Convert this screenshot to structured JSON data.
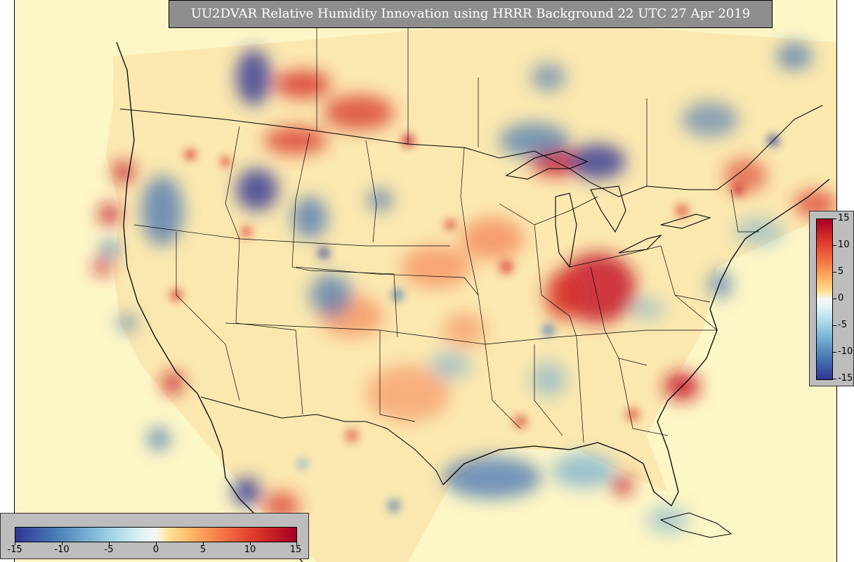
{
  "title": "UU2DVAR Relative Humidity Innovation using HRRR Background 22 UTC 27 Apr 2019",
  "colorbar_right": {
    "labels": [
      "15",
      "10",
      "5",
      "0",
      "-5",
      "-10",
      "-15"
    ],
    "values": [
      15,
      10,
      5,
      0,
      -5,
      -10,
      -15
    ]
  },
  "colorbar_bottom": {
    "labels": [
      "-15",
      "-10",
      "-5",
      "0",
      "5",
      "10",
      "15"
    ],
    "values": [
      -15,
      -10,
      -5,
      0,
      5,
      10,
      15
    ]
  },
  "colors": {
    "map_background": "#fdf6c6",
    "positive_max": "#a50026",
    "positive_mid": "#f46d43",
    "neutral": "#f7f7f7",
    "negative_mid": "#74add1",
    "negative_max": "#313695",
    "panel_gray": "#bdbdbd",
    "title_bg": "#8e8e8e"
  },
  "map": {
    "region": "Continental United States",
    "field": "Relative Humidity Innovation",
    "units_range": [
      -15,
      15
    ],
    "features": [
      "coastlines",
      "state-borders",
      "country-borders",
      "great-lakes"
    ]
  }
}
